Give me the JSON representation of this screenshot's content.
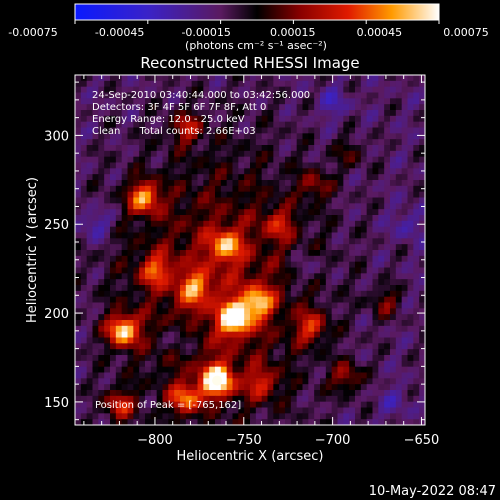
{
  "colorbar": {
    "ticks": [
      "-0.00075",
      "-0.00045",
      "-0.00015",
      "0.00015",
      "0.00045",
      "0.00075"
    ],
    "unit_label": "(photons cm⁻² s⁻¹ asec⁻²)",
    "range": [
      -0.00075,
      0.00075
    ]
  },
  "chart_data": {
    "type": "heatmap",
    "title": "Reconstructed RHESSI Image",
    "xlabel": "Heliocentric X (arcsec)",
    "ylabel": "Heliocentric Y (arcsec)",
    "xlim": [
      -845,
      -648
    ],
    "ylim": [
      137,
      334
    ],
    "x_ticks": [
      -800,
      -750,
      -700,
      -650
    ],
    "y_ticks": [
      150,
      200,
      250,
      300
    ],
    "x_tick_labels": [
      "−800",
      "−750",
      "−700",
      "−650"
    ],
    "y_tick_labels": [
      "150",
      "200",
      "250",
      "300"
    ],
    "grid": false,
    "annotations": [
      "24-Sep-2010 03:40:44.000 to 03:42:56.000",
      "Detectors: 3F 4F 5F 6F 7F 8F, Att 0",
      "Energy Range: 12.0 - 25.0 keV",
      "Clean      Total counts: 2.66E+03"
    ],
    "peak_label": "Position of Peak = [-765,162]",
    "peak": [
      -765,
      162
    ],
    "sources": [
      {
        "x": -765,
        "y": 162,
        "value": 0.00075
      },
      {
        "x": -755,
        "y": 197,
        "value": 0.00066
      },
      {
        "x": -818,
        "y": 190,
        "value": 0.00062
      },
      {
        "x": -806,
        "y": 265,
        "value": 0.00052
      },
      {
        "x": -760,
        "y": 238,
        "value": 0.00042
      },
      {
        "x": -742,
        "y": 206,
        "value": 0.00046
      },
      {
        "x": -712,
        "y": 192,
        "value": 0.00034
      },
      {
        "x": -783,
        "y": 152,
        "value": 0.00044
      },
      {
        "x": -692,
        "y": 164,
        "value": 0.00028
      },
      {
        "x": -800,
        "y": 224,
        "value": 0.00034
      },
      {
        "x": -710,
        "y": 272,
        "value": 0.00024
      },
      {
        "x": -782,
        "y": 304,
        "value": 0.0003
      },
      {
        "x": -820,
        "y": 148,
        "value": 0.00036
      },
      {
        "x": -730,
        "y": 250,
        "value": 0.00026
      },
      {
        "x": -670,
        "y": 206,
        "value": 0.00022
      },
      {
        "x": -740,
        "y": 160,
        "value": 0.0003
      },
      {
        "x": -778,
        "y": 214,
        "value": 0.00036
      },
      {
        "x": -690,
        "y": 290,
        "value": 0.00016
      },
      {
        "x": -658,
        "y": 250,
        "value": -0.00018
      },
      {
        "x": -834,
        "y": 250,
        "value": -0.00026
      },
      {
        "x": -700,
        "y": 318,
        "value": -0.0002
      },
      {
        "x": -785,
        "y": 186,
        "value": -0.00024
      },
      {
        "x": -715,
        "y": 225,
        "value": -0.00016
      },
      {
        "x": -665,
        "y": 150,
        "value": -0.00014
      }
    ]
  },
  "footer": {
    "date": "10-May-2022 08:47"
  }
}
